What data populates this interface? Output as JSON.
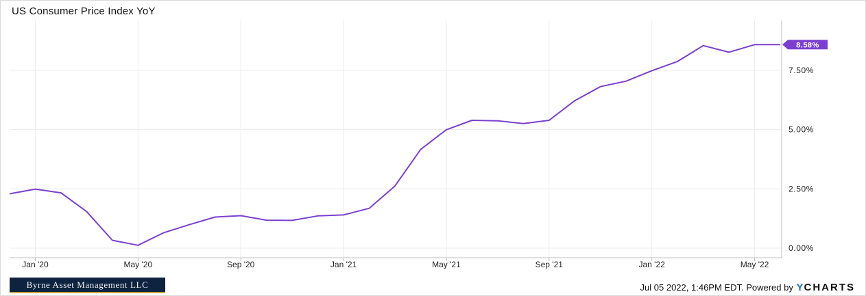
{
  "title": "US Consumer Price Index YoY",
  "footer": {
    "timestamp": "Jul 05 2022, 1:46PM EDT.",
    "powered_by": "Powered by",
    "brand_y": "Y",
    "brand_rest": "CHARTS"
  },
  "logo_text": "Byrne Asset Management LLC",
  "colors": {
    "line": "#7b3fd0",
    "badge": "#7b3fd0",
    "grid": "#ececec",
    "brand_y": "#1c6fd1"
  },
  "chart_data": {
    "type": "line",
    "title": "US Consumer Price Index YoY",
    "x_tick_labels": [
      "Jan '20",
      "May '20",
      "Sep '20",
      "Jan '21",
      "May '21",
      "Sep '21",
      "Jan '22",
      "May '22"
    ],
    "y_tick_labels": [
      "0.00%",
      "2.50%",
      "5.00%",
      "7.50%"
    ],
    "ylim": [
      0,
      10
    ],
    "grid": true,
    "last_value_label": "8.58%",
    "series": [
      {
        "x": [
          "2019-12",
          "2020-01",
          "2020-02",
          "2020-03",
          "2020-04",
          "2020-05",
          "2020-06",
          "2020-07",
          "2020-08",
          "2020-09",
          "2020-10",
          "2020-11",
          "2020-12",
          "2021-01",
          "2021-02",
          "2021-03",
          "2021-04",
          "2021-05",
          "2021-06",
          "2021-07",
          "2021-08",
          "2021-09",
          "2021-10",
          "2021-11",
          "2021-12",
          "2022-01",
          "2022-02",
          "2022-03",
          "2022-04",
          "2022-05",
          "2022-06"
        ],
        "values": [
          2.29,
          2.49,
          2.33,
          1.54,
          0.33,
          0.12,
          0.65,
          0.99,
          1.31,
          1.37,
          1.18,
          1.17,
          1.36,
          1.4,
          1.68,
          2.62,
          4.16,
          4.99,
          5.39,
          5.37,
          5.25,
          5.39,
          6.22,
          6.81,
          7.04,
          7.48,
          7.87,
          8.54,
          8.26,
          8.58,
          8.58
        ]
      }
    ]
  }
}
